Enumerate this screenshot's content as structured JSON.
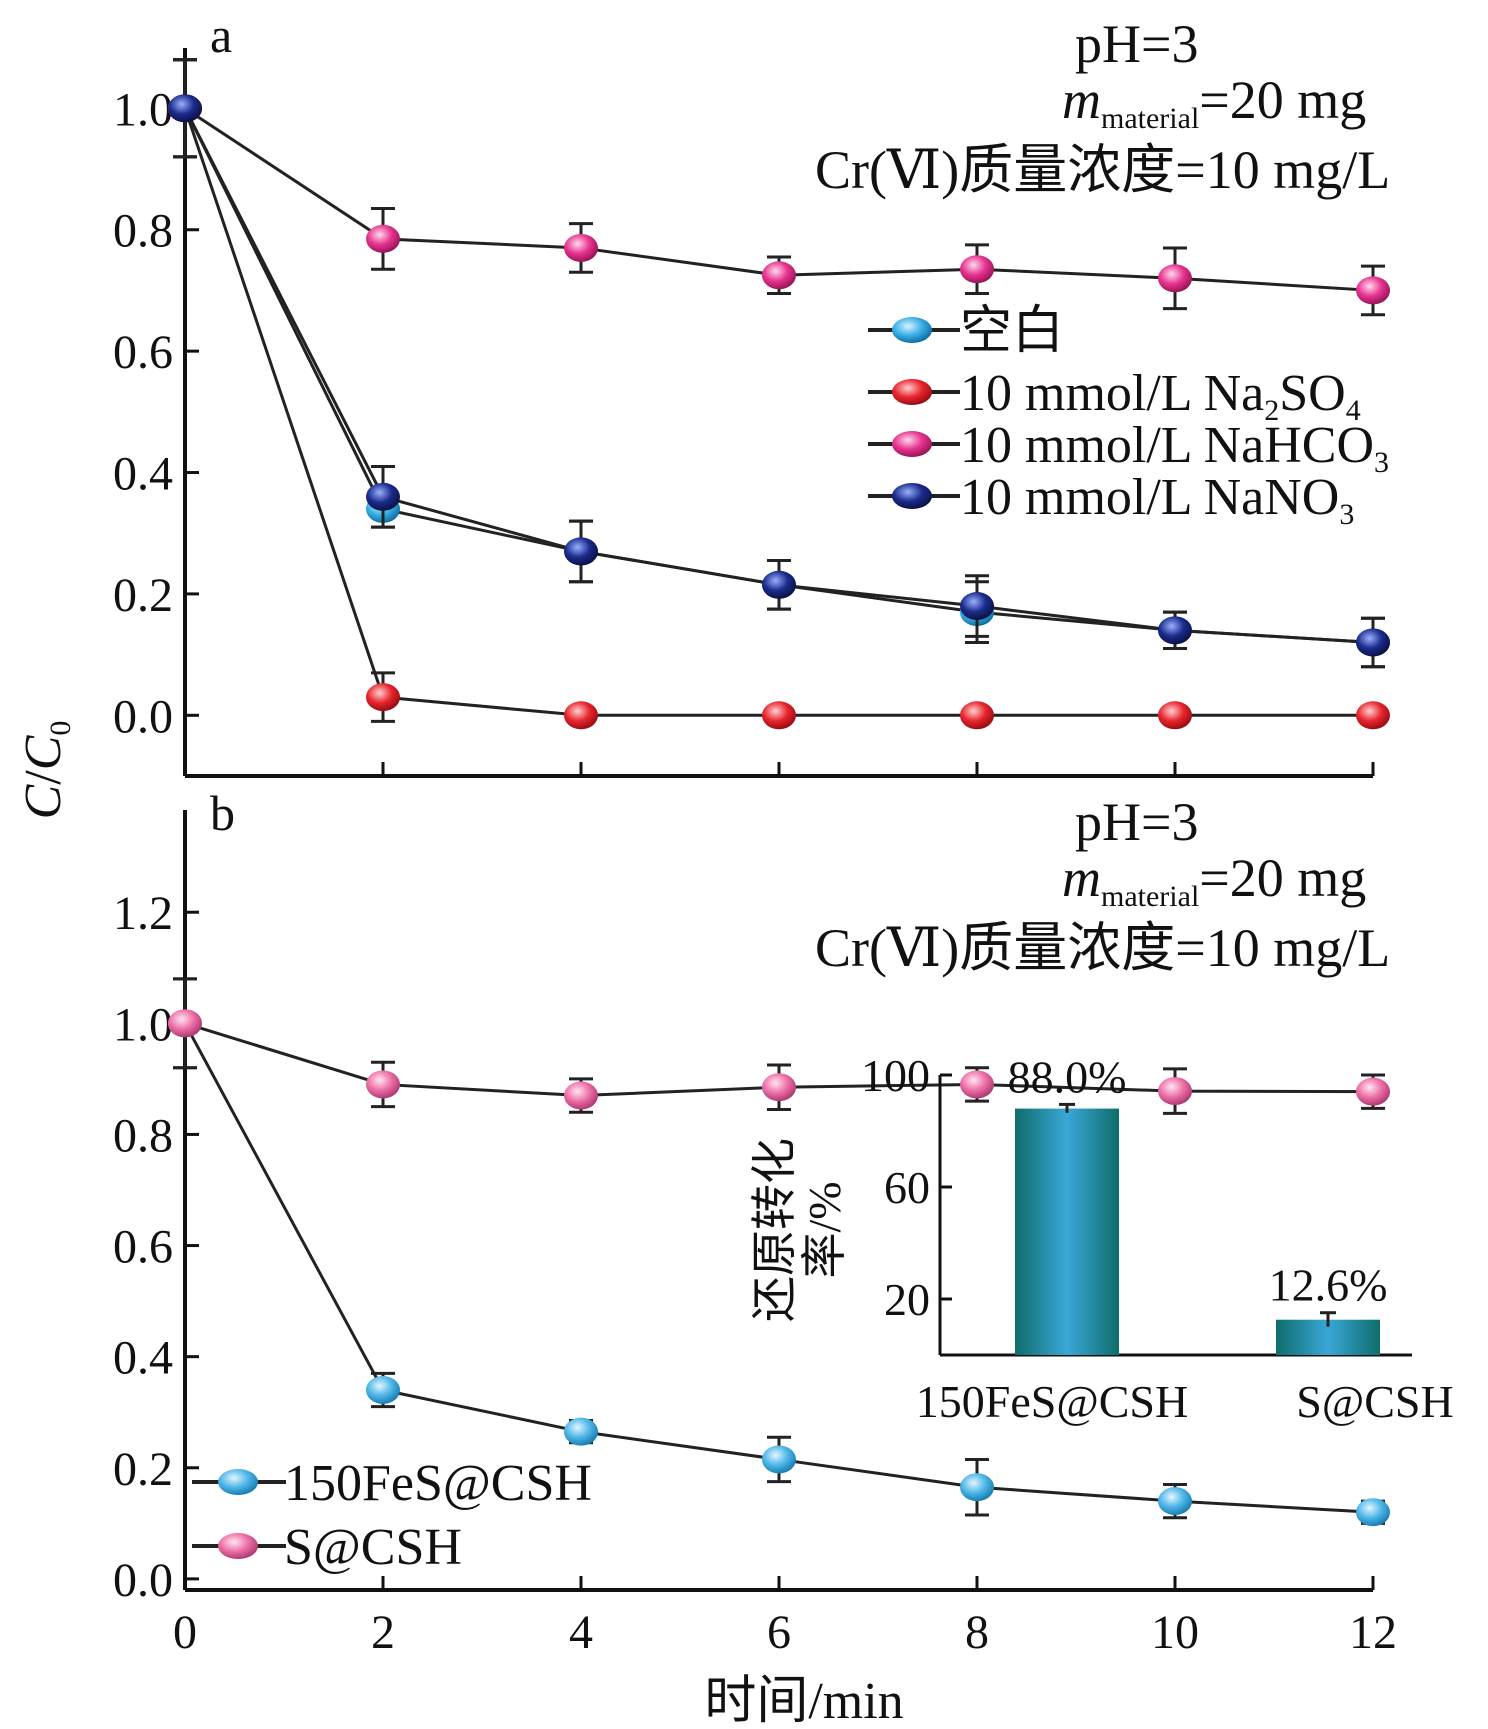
{
  "chart_data": [
    {
      "panel": "a",
      "type": "line",
      "x": [
        0,
        2,
        4,
        6,
        8,
        10,
        12
      ],
      "xlim": [
        0,
        12
      ],
      "ylim": [
        -0.1,
        1.05
      ],
      "yticks": [
        "0.0",
        "0.2",
        "0.4",
        "0.6",
        "0.8",
        "1.0"
      ],
      "ytick_values": [
        0,
        0.2,
        0.4,
        0.6,
        0.8,
        1.0
      ],
      "conditions": {
        "ph": "pH=3",
        "mass_var": "m",
        "mass_sub": "material",
        "mass_val": "=20 mg",
        "conc": "Cr(Ⅵ)质量浓度=10 mg/L"
      },
      "legend_position": "right",
      "series": [
        {
          "name": "空白",
          "name_main": "空白",
          "name_sub": "",
          "name_end": "",
          "color": "#3ab0e6",
          "values": [
            1.0,
            0.34,
            0.27,
            0.215,
            0.17,
            0.14,
            0.12
          ],
          "errors": [
            0.08,
            0.03,
            0.05,
            0.04,
            0.05,
            0.03,
            0.04
          ]
        },
        {
          "name": "10 mmol/L Na2SO4",
          "name_main": "10 mmol/L Na",
          "name_sub": "2",
          "name_mid": "SO",
          "name_sub2": "4",
          "color": "#e8252e",
          "values": [
            1.0,
            0.03,
            0.0,
            0.0,
            0.0,
            0.0,
            0.0
          ],
          "errors": [
            0.08,
            0.04,
            0.0,
            0.0,
            0.0,
            0.0,
            0.0
          ]
        },
        {
          "name": "10 mmol/L NaHCO3",
          "name_main": "10 mmol/L NaHCO",
          "name_sub": "3",
          "color": "#e7338f",
          "values": [
            1.0,
            0.785,
            0.77,
            0.725,
            0.735,
            0.72,
            0.7
          ],
          "errors": [
            0.08,
            0.05,
            0.04,
            0.03,
            0.04,
            0.05,
            0.04
          ]
        },
        {
          "name": "10 mmol/L NaNO3",
          "name_main": "10 mmol/L NaNO",
          "name_sub": "3",
          "color": "#1b2c8c",
          "values": [
            1.0,
            0.36,
            0.27,
            0.215,
            0.18,
            0.14,
            0.12
          ],
          "errors": [
            0.08,
            0.05,
            0.05,
            0.04,
            0.05,
            0.03,
            0.04
          ]
        }
      ]
    },
    {
      "panel": "b",
      "type": "line",
      "x": [
        0,
        2,
        4,
        6,
        8,
        10,
        12
      ],
      "xlim": [
        0,
        12
      ],
      "ylim": [
        -0.02,
        1.33
      ],
      "yticks": [
        "0.0",
        "0.2",
        "0.4",
        "0.6",
        "0.8",
        "1.0",
        "1.2"
      ],
      "ytick_values": [
        0,
        0.2,
        0.4,
        0.6,
        0.8,
        1.0,
        1.2
      ],
      "xticks": [
        "0",
        "2",
        "4",
        "6",
        "8",
        "10",
        "12"
      ],
      "xlabel": "时间/min",
      "conditions": {
        "ph": "pH=3",
        "mass_var": "m",
        "mass_sub": "material",
        "mass_val": "=20 mg",
        "conc": "Cr(Ⅵ)质量浓度=10 mg/L"
      },
      "legend_position": "bottom-left",
      "series": [
        {
          "name": "150FeS@CSH",
          "color": "#4eb6e8",
          "values": [
            1.0,
            0.34,
            0.265,
            0.215,
            0.165,
            0.14,
            0.12
          ],
          "errors": [
            0.08,
            0.03,
            0.02,
            0.04,
            0.05,
            0.03,
            0.02
          ]
        },
        {
          "name": "S@CSH",
          "color": "#ee6fa8",
          "values": [
            1.0,
            0.89,
            0.87,
            0.885,
            0.89,
            0.878,
            0.877
          ],
          "errors": [
            0.08,
            0.04,
            0.03,
            0.04,
            0.03,
            0.04,
            0.03
          ]
        }
      ]
    },
    {
      "panel": "b-inset",
      "type": "bar",
      "categories": [
        "150FeS@CSH",
        "S@CSH"
      ],
      "values": [
        88.0,
        12.6
      ],
      "errors": [
        1.5,
        2.5
      ],
      "data_labels": [
        "88.0%",
        "12.6%"
      ],
      "ylabel": "还原转化率/%",
      "ylabel_line1": "还原转化",
      "ylabel_line2": "率/%",
      "ylim": [
        0,
        100
      ],
      "yticks": [
        "20",
        "60",
        "100"
      ],
      "ytick_values": [
        20,
        60,
        100
      ],
      "color": "#1f8fa8"
    }
  ],
  "shared": {
    "ylabel_main": "C",
    "ylabel_denom": "C",
    "ylabel_sub": "0"
  }
}
